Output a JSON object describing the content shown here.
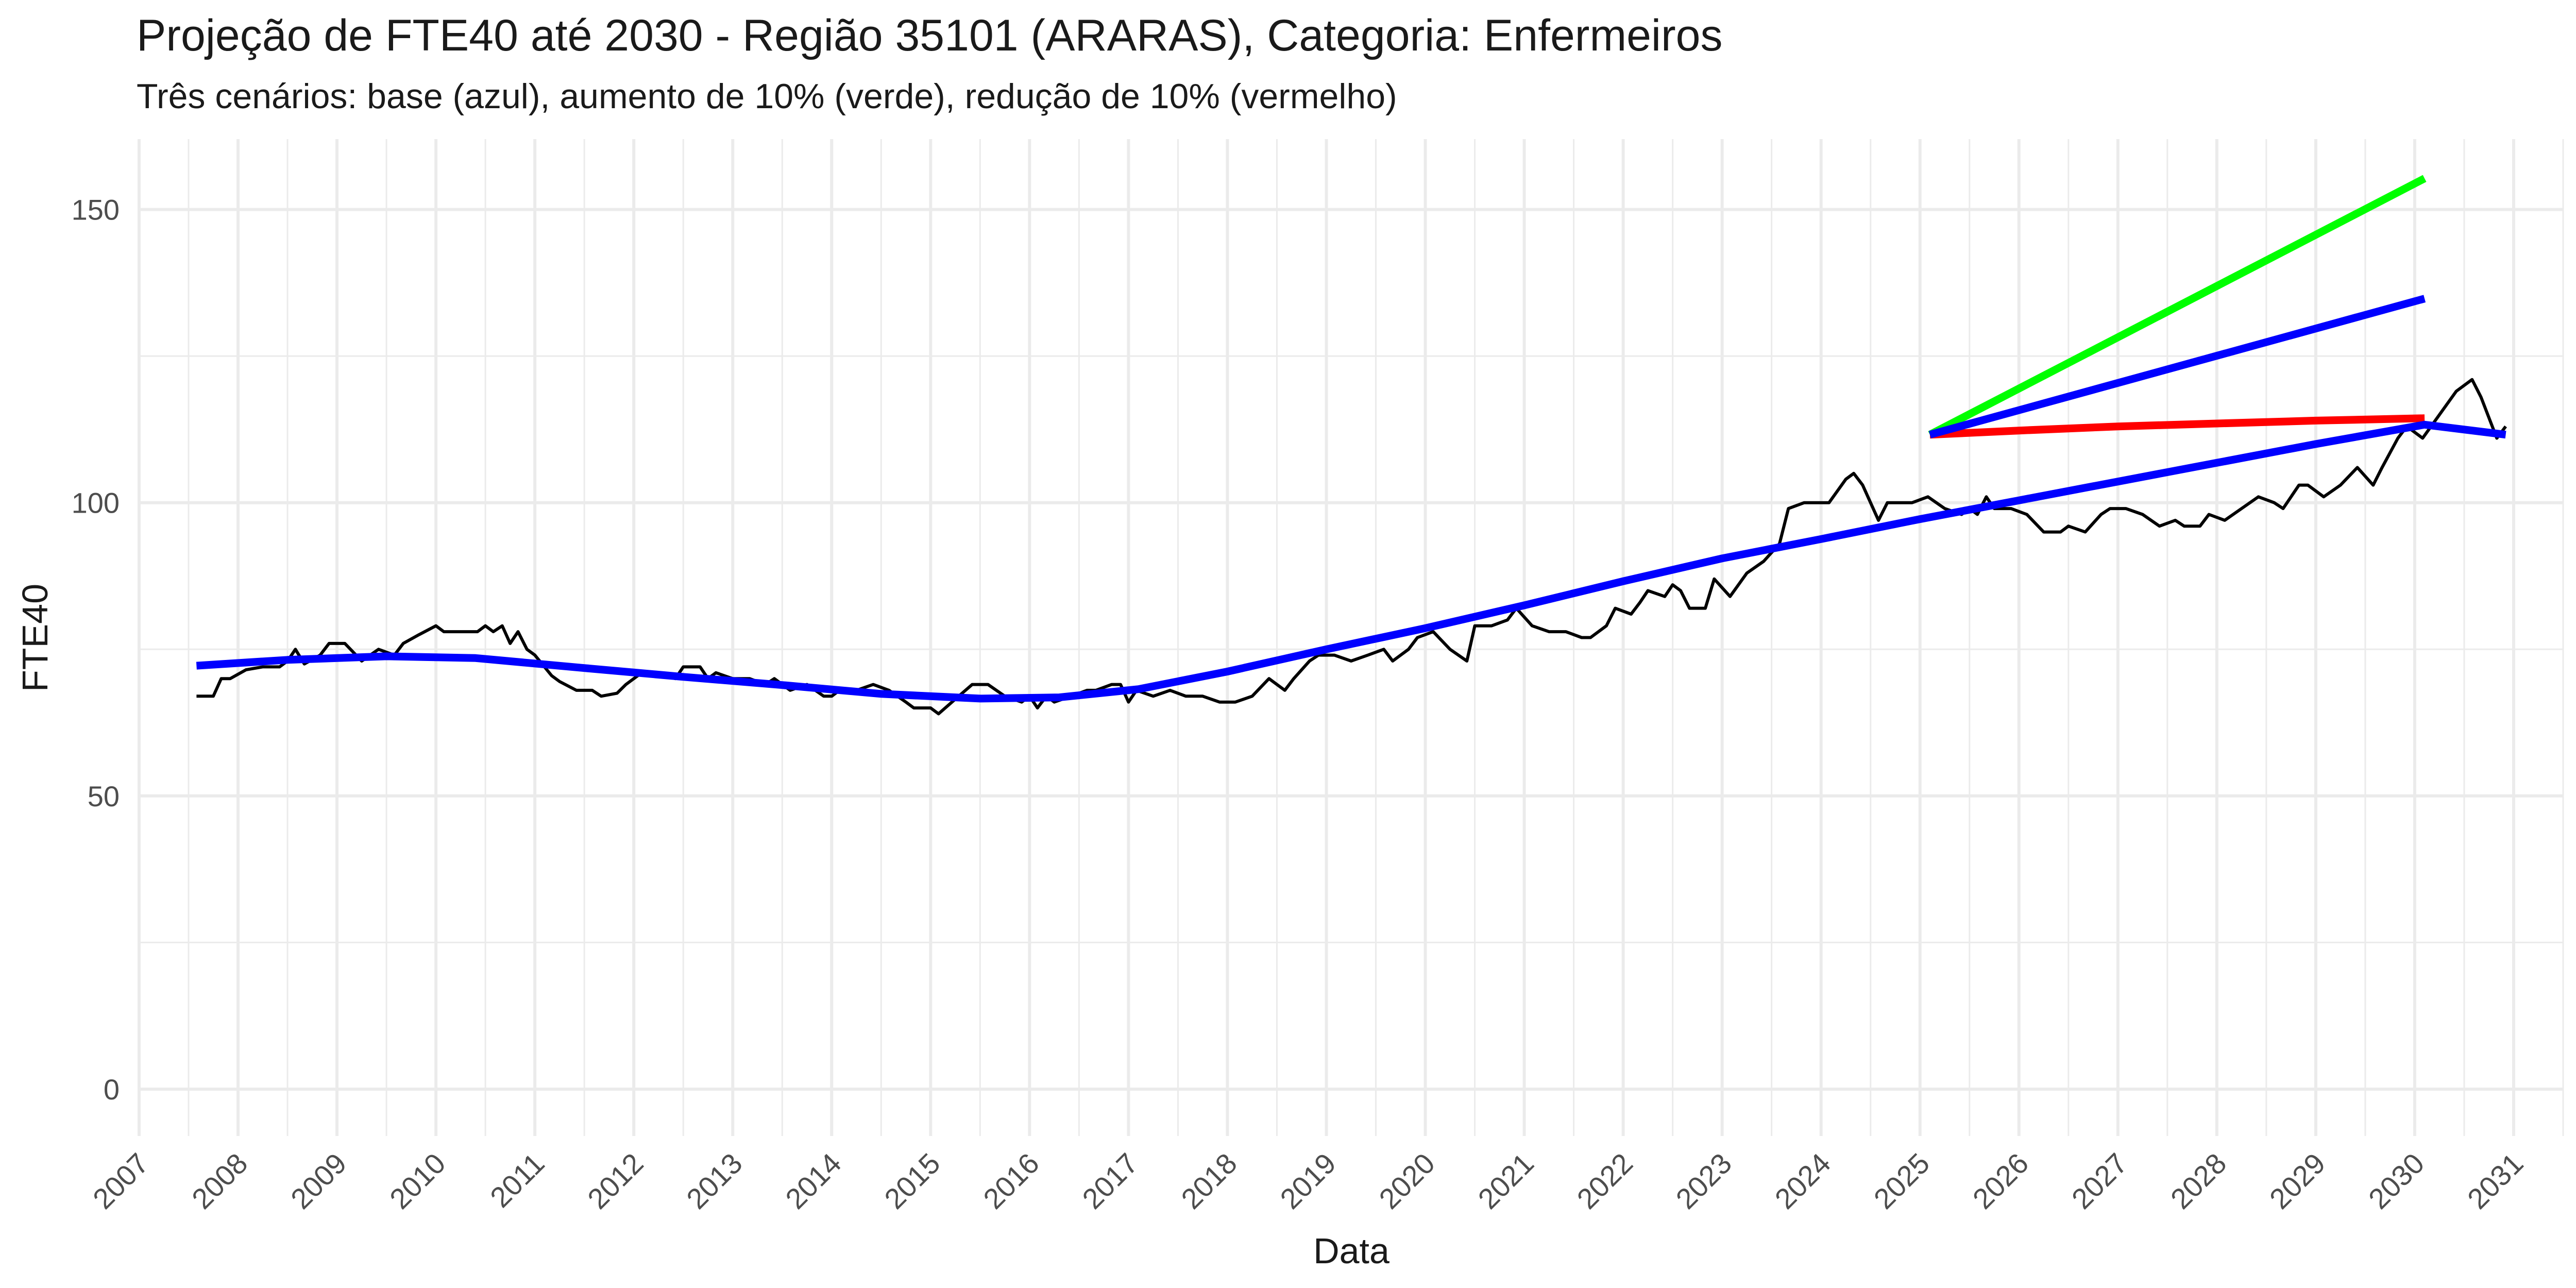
{
  "chart_data": {
    "type": "line",
    "title": "Projeção de FTE40 até 2030 - Região 35101 (ARARAS), Categoria: Enfermeiros",
    "subtitle": "Três cenários: base (azul), aumento de 10% (verde), redução de 10% (vermelho)",
    "xlabel": "Data",
    "ylabel": "FTE40",
    "xlim": [
      2007.0,
      2031.5
    ],
    "ylim": [
      -8,
      162
    ],
    "x_ticks": [
      "2007",
      "2008",
      "2009",
      "2010",
      "2011",
      "2012",
      "2013",
      "2014",
      "2015",
      "2016",
      "2017",
      "2018",
      "2019",
      "2020",
      "2021",
      "2022",
      "2023",
      "2024",
      "2025",
      "2026",
      "2027",
      "2028",
      "2029",
      "2030",
      "2031"
    ],
    "y_ticks": [
      "0",
      "50",
      "100",
      "150"
    ],
    "y_tick_values": [
      0,
      50,
      100,
      150
    ],
    "grid": true,
    "legend": "none",
    "colors": {
      "observed": "#000000",
      "base": "#0000FF",
      "increase": "#00FF00",
      "decrease": "#FF0000",
      "grid": "#EBEBEB"
    },
    "series": [
      {
        "key": "observed",
        "points": [
          [
            2007.58,
            67
          ],
          [
            2007.75,
            67
          ],
          [
            2007.83,
            70
          ],
          [
            2007.92,
            70
          ],
          [
            2008.08,
            71.5
          ],
          [
            2008.25,
            72
          ],
          [
            2008.42,
            72
          ],
          [
            2008.5,
            73
          ],
          [
            2008.58,
            75
          ],
          [
            2008.67,
            72.5
          ],
          [
            2008.83,
            74
          ],
          [
            2008.92,
            76
          ],
          [
            2009.08,
            76
          ],
          [
            2009.25,
            73
          ],
          [
            2009.42,
            75
          ],
          [
            2009.58,
            74
          ],
          [
            2009.67,
            76
          ],
          [
            2009.83,
            77.5
          ],
          [
            2010.0,
            79
          ],
          [
            2010.08,
            78
          ],
          [
            2010.25,
            78
          ],
          [
            2010.42,
            78
          ],
          [
            2010.5,
            79
          ],
          [
            2010.58,
            78
          ],
          [
            2010.67,
            79
          ],
          [
            2010.75,
            76
          ],
          [
            2010.83,
            78
          ],
          [
            2010.92,
            75
          ],
          [
            2011.0,
            74
          ],
          [
            2011.17,
            70.5
          ],
          [
            2011.25,
            69.5
          ],
          [
            2011.42,
            68
          ],
          [
            2011.58,
            68
          ],
          [
            2011.67,
            67
          ],
          [
            2011.83,
            67.5
          ],
          [
            2011.92,
            69
          ],
          [
            2012.08,
            71
          ],
          [
            2012.25,
            71
          ],
          [
            2012.42,
            70
          ],
          [
            2012.5,
            72
          ],
          [
            2012.67,
            72
          ],
          [
            2012.75,
            70
          ],
          [
            2012.83,
            71
          ],
          [
            2013.0,
            70
          ],
          [
            2013.17,
            70
          ],
          [
            2013.33,
            69
          ],
          [
            2013.42,
            70
          ],
          [
            2013.58,
            68
          ],
          [
            2013.75,
            69
          ],
          [
            2013.92,
            67
          ],
          [
            2014.0,
            67
          ],
          [
            2014.08,
            68
          ],
          [
            2014.25,
            68
          ],
          [
            2014.42,
            69
          ],
          [
            2014.58,
            68
          ],
          [
            2014.75,
            66
          ],
          [
            2014.83,
            65
          ],
          [
            2015.0,
            65
          ],
          [
            2015.08,
            64
          ],
          [
            2015.25,
            66.5
          ],
          [
            2015.42,
            69
          ],
          [
            2015.58,
            69
          ],
          [
            2015.75,
            67
          ],
          [
            2015.92,
            66
          ],
          [
            2016.0,
            67
          ],
          [
            2016.08,
            65
          ],
          [
            2016.17,
            67
          ],
          [
            2016.25,
            66
          ],
          [
            2016.42,
            67
          ],
          [
            2016.58,
            68
          ],
          [
            2016.67,
            68
          ],
          [
            2016.83,
            69
          ],
          [
            2016.92,
            69
          ],
          [
            2017.0,
            66
          ],
          [
            2017.08,
            68
          ],
          [
            2017.25,
            67
          ],
          [
            2017.42,
            68
          ],
          [
            2017.58,
            67
          ],
          [
            2017.75,
            67
          ],
          [
            2017.92,
            66
          ],
          [
            2018.08,
            66
          ],
          [
            2018.25,
            67
          ],
          [
            2018.42,
            70
          ],
          [
            2018.58,
            68
          ],
          [
            2018.67,
            70
          ],
          [
            2018.83,
            73
          ],
          [
            2018.92,
            74
          ],
          [
            2019.08,
            74
          ],
          [
            2019.25,
            73
          ],
          [
            2019.42,
            74
          ],
          [
            2019.58,
            75
          ],
          [
            2019.67,
            73
          ],
          [
            2019.83,
            75
          ],
          [
            2019.92,
            77
          ],
          [
            2020.08,
            78
          ],
          [
            2020.25,
            75
          ],
          [
            2020.42,
            73
          ],
          [
            2020.5,
            79
          ],
          [
            2020.67,
            79
          ],
          [
            2020.83,
            80
          ],
          [
            2020.92,
            82
          ],
          [
            2021.08,
            79
          ],
          [
            2021.25,
            78
          ],
          [
            2021.42,
            78
          ],
          [
            2021.58,
            77
          ],
          [
            2021.67,
            77
          ],
          [
            2021.83,
            79
          ],
          [
            2021.92,
            82
          ],
          [
            2022.08,
            81
          ],
          [
            2022.17,
            83
          ],
          [
            2022.25,
            85
          ],
          [
            2022.42,
            84
          ],
          [
            2022.5,
            86
          ],
          [
            2022.58,
            85
          ],
          [
            2022.67,
            82
          ],
          [
            2022.83,
            82
          ],
          [
            2022.92,
            87
          ],
          [
            2023.08,
            84
          ],
          [
            2023.25,
            88
          ],
          [
            2023.42,
            90
          ],
          [
            2023.58,
            93
          ],
          [
            2023.67,
            99
          ],
          [
            2023.83,
            100
          ],
          [
            2023.92,
            100
          ],
          [
            2024.08,
            100
          ],
          [
            2024.25,
            104
          ],
          [
            2024.33,
            105
          ],
          [
            2024.42,
            103
          ],
          [
            2024.58,
            97
          ],
          [
            2024.67,
            100
          ],
          [
            2024.83,
            100
          ],
          [
            2024.92,
            100
          ],
          [
            2025.08,
            101
          ],
          [
            2025.25,
            99
          ],
          [
            2025.42,
            98
          ],
          [
            2025.5,
            99
          ],
          [
            2025.58,
            98
          ],
          [
            2025.67,
            101
          ],
          [
            2025.75,
            99
          ],
          [
            2025.92,
            99
          ],
          [
            2026.08,
            98
          ],
          [
            2026.25,
            95
          ],
          [
            2026.42,
            95
          ],
          [
            2026.5,
            96
          ],
          [
            2026.67,
            95
          ],
          [
            2026.83,
            98
          ],
          [
            2026.92,
            99
          ],
          [
            2027.08,
            99
          ],
          [
            2027.25,
            98
          ],
          [
            2027.42,
            96
          ],
          [
            2027.58,
            97
          ],
          [
            2027.67,
            96
          ],
          [
            2027.83,
            96
          ],
          [
            2027.92,
            98
          ],
          [
            2028.08,
            97
          ],
          [
            2028.25,
            99
          ],
          [
            2028.42,
            101
          ],
          [
            2028.58,
            100
          ],
          [
            2028.67,
            99
          ],
          [
            2028.83,
            103
          ],
          [
            2028.92,
            103
          ],
          [
            2029.08,
            101
          ],
          [
            2029.25,
            103
          ],
          [
            2029.42,
            106
          ],
          [
            2029.58,
            103
          ],
          [
            2029.67,
            106
          ],
          [
            2029.83,
            111
          ],
          [
            2029.92,
            113
          ],
          [
            2030.08,
            111
          ],
          [
            2030.25,
            115
          ],
          [
            2030.42,
            119
          ],
          [
            2030.58,
            121
          ],
          [
            2030.67,
            118
          ],
          [
            2030.83,
            111
          ],
          [
            2030.92,
            113
          ]
        ]
      },
      {
        "key": "base",
        "points": [
          [
            2007.58,
            72.2
          ],
          [
            2008.5,
            73.2
          ],
          [
            2009.5,
            73.8
          ],
          [
            2010.4,
            73.5
          ],
          [
            2011.5,
            71.8
          ],
          [
            2012.5,
            70.3
          ],
          [
            2013.5,
            68.9
          ],
          [
            2014.5,
            67.4
          ],
          [
            2015.5,
            66.6
          ],
          [
            2016.3,
            66.8
          ],
          [
            2017.1,
            68.2
          ],
          [
            2018.0,
            71.2
          ],
          [
            2019.0,
            75.0
          ],
          [
            2020.0,
            78.6
          ],
          [
            2021.0,
            82.5
          ],
          [
            2022.0,
            86.6
          ],
          [
            2023.0,
            90.5
          ],
          [
            2024.0,
            93.8
          ],
          [
            2025.0,
            97.2
          ],
          [
            2026.0,
            100.4
          ],
          [
            2027.0,
            103.6
          ],
          [
            2028.0,
            106.8
          ],
          [
            2029.0,
            110.0
          ],
          [
            2030.1,
            113.3
          ],
          [
            2030.92,
            111.6
          ]
        ]
      },
      {
        "key": "base-projection",
        "points": [
          [
            2025.1,
            111.6
          ],
          [
            2030.1,
            134.8
          ]
        ]
      },
      {
        "key": "increase",
        "points": [
          [
            2025.1,
            111.6
          ],
          [
            2030.1,
            155.3
          ]
        ]
      },
      {
        "key": "decrease",
        "points": [
          [
            2025.1,
            111.6
          ],
          [
            2026.0,
            112.3
          ],
          [
            2027.0,
            113.0
          ],
          [
            2028.0,
            113.5
          ],
          [
            2029.0,
            114.0
          ],
          [
            2030.1,
            114.4
          ]
        ]
      }
    ]
  }
}
